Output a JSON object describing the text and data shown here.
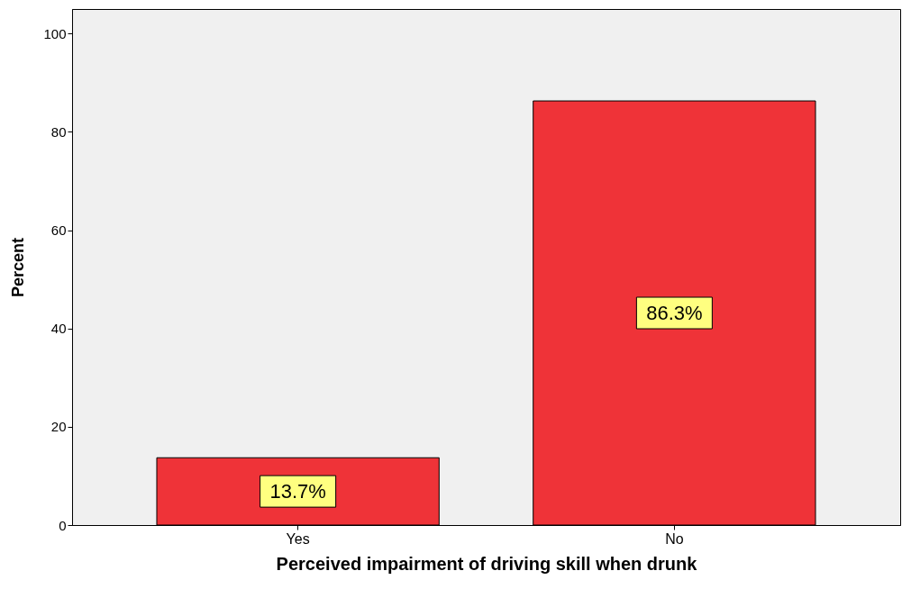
{
  "chart_data": {
    "type": "bar",
    "xlabel": "Perceived impairment of driving skill when drunk",
    "ylabel": "Percent",
    "categories": [
      "Yes",
      "No"
    ],
    "values": [
      13.7,
      86.3
    ],
    "value_labels": [
      "13.7%",
      "86.3%"
    ],
    "color": "#ef3338",
    "ylim": [
      0,
      105
    ],
    "yticks": [
      0,
      20,
      40,
      60,
      80,
      100
    ],
    "grid": false
  }
}
